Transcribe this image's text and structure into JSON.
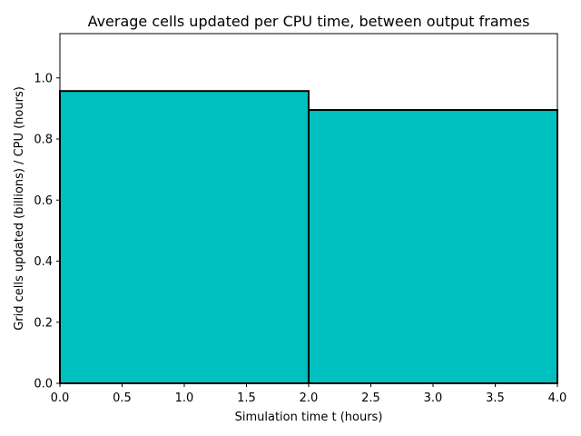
{
  "chart_data": {
    "type": "bar",
    "title": "Average cells updated per CPU time, between output frames",
    "xlabel": "Simulation time t (hours)",
    "ylabel": "Grid cells updated (billions) / CPU (hours)",
    "bins": [
      {
        "x_start": 0.0,
        "x_end": 2.0,
        "value": 0.957
      },
      {
        "x_start": 2.0,
        "x_end": 4.0,
        "value": 0.895
      }
    ],
    "xlim": [
      0.0,
      4.0
    ],
    "ylim": [
      0.0,
      1.145
    ],
    "xticks": [
      "0.0",
      "0.5",
      "1.0",
      "1.5",
      "2.0",
      "2.5",
      "3.0",
      "3.5",
      "4.0"
    ],
    "yticks": [
      "0.0",
      "0.2",
      "0.4",
      "0.6",
      "0.8",
      "1.0"
    ],
    "grid": false,
    "legend": null,
    "colors": {
      "bar_fill": "#00bfbf",
      "bar_edge": "#000000"
    }
  }
}
